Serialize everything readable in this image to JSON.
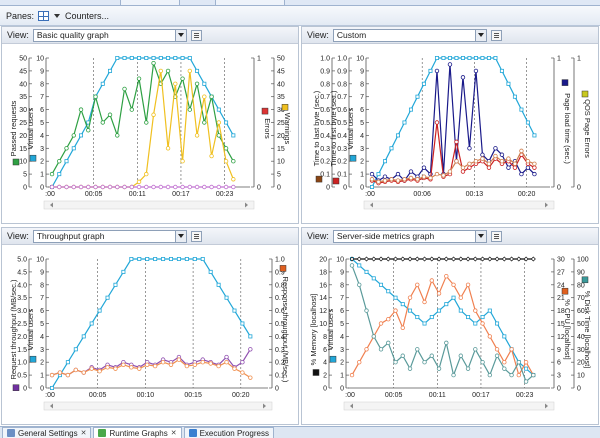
{
  "toolbar": {
    "panes_label": "Panes:",
    "counters_label": "Counters..."
  },
  "view_label": "View:",
  "tabs": [
    {
      "label": "General Settings",
      "close": "✕",
      "active": false,
      "color": "#6b8fc4"
    },
    {
      "label": "Runtime Graphs",
      "close": "✕",
      "active": true,
      "color": "#4aa84a"
    },
    {
      "label": "Execution Progress",
      "close": "",
      "active": false,
      "color": "#3a7fd0"
    }
  ],
  "panes": [
    {
      "view": "Basic quality graph",
      "x_ticks": [
        ":00",
        "00:05",
        "00:11",
        "00:17",
        "00:23"
      ],
      "left_axes": [
        {
          "label": "Passed requests",
          "color": "#2ea043",
          "ticks": [
            "0",
            "5",
            "10",
            "15",
            "20",
            "25",
            "30",
            "35",
            "40",
            "45",
            "50"
          ],
          "min": 0,
          "max": 50
        },
        {
          "label": "Virtual users",
          "color": "#22a7d8",
          "ticks": [
            "0",
            "1",
            "2",
            "3",
            "4",
            "5",
            "6",
            "7",
            "8",
            "9",
            "10"
          ],
          "min": 0,
          "max": 10
        }
      ],
      "right_axes": [
        {
          "label": "Errors",
          "color": "#d33",
          "ticks": [
            "0",
            "1"
          ],
          "min": 0,
          "max": 1
        },
        {
          "label": "Warnings",
          "color": "#f0c020",
          "ticks": [
            "0",
            "5",
            "10",
            "15",
            "20",
            "25",
            "30",
            "35",
            "40",
            "45",
            "50"
          ],
          "min": 0,
          "max": 50
        }
      ],
      "series": [
        {
          "axis": "Virtual users",
          "side": "left",
          "color": "#22a7d8",
          "marker": "square",
          "values": [
            0,
            1,
            2,
            3,
            4,
            5,
            7,
            8,
            9,
            10,
            10,
            10,
            10,
            10,
            10,
            10,
            10,
            10,
            10,
            10,
            9,
            8,
            7,
            6,
            5,
            4
          ]
        },
        {
          "axis": "Passed requests",
          "side": "left",
          "color": "#2ea043",
          "marker": "circle",
          "values": [
            5,
            10,
            15,
            20,
            30,
            22,
            35,
            25,
            28,
            20,
            38,
            30,
            42,
            25,
            48,
            40,
            45,
            35,
            42,
            30,
            40,
            25,
            35,
            20,
            15,
            10
          ]
        },
        {
          "axis": "Warnings",
          "side": "right",
          "color": "#f0c020",
          "marker": "circle",
          "values": [
            0,
            0,
            0,
            0,
            0,
            0,
            0,
            0,
            0,
            0,
            0,
            0,
            2,
            5,
            28,
            45,
            15,
            40,
            10,
            45,
            20,
            35,
            12,
            25,
            10,
            3
          ]
        },
        {
          "axis": "Errors",
          "side": "right",
          "color": "#c070d0",
          "marker": "circle",
          "values": [
            0,
            0,
            0,
            0,
            0,
            0,
            0,
            0,
            0,
            0,
            0,
            0,
            0,
            0,
            0,
            0,
            0,
            0,
            0,
            0,
            0,
            0,
            0,
            0,
            0,
            0
          ]
        }
      ]
    },
    {
      "view": "Custom",
      "x_ticks": [
        ":00",
        "00:06",
        "00:13",
        "00:20"
      ],
      "left_axes": [
        {
          "label": "Time to last byte (sec.)",
          "color": "#8b4513",
          "ticks": [
            "0",
            "0.1",
            "0.2",
            "0.3",
            "0.4",
            "0.5",
            "0.6",
            "0.7",
            "0.8",
            "0.9",
            "1.0"
          ],
          "min": 0,
          "max": 1
        },
        {
          "label": "Time to first byte (sec.)",
          "color": "#cc2222",
          "ticks": [
            "0",
            "0.1",
            "0.2",
            "0.3",
            "0.4",
            "0.5",
            "0.6",
            "0.7",
            "0.8",
            "0.9",
            "1.0"
          ],
          "min": 0,
          "max": 1
        },
        {
          "label": "Virtual users",
          "color": "#22a7d8",
          "ticks": [
            "0",
            "1",
            "2",
            "3",
            "4",
            "5",
            "6",
            "7",
            "8",
            "9",
            "10"
          ],
          "min": 0,
          "max": 10
        }
      ],
      "right_axes": [
        {
          "label": "Page load time (sec.)",
          "color": "#1a1a8a",
          "ticks": [
            "0",
            "1"
          ],
          "min": 0,
          "max": 1
        },
        {
          "label": "QOS Page Errors",
          "color": "#c8c820",
          "ticks": [
            "0",
            "1"
          ],
          "min": 0,
          "max": 1
        }
      ],
      "series": [
        {
          "axis": "Virtual users",
          "side": "left",
          "color": "#22a7d8",
          "marker": "square",
          "values": [
            0,
            1,
            2,
            3,
            4,
            5,
            6,
            7,
            8,
            9,
            10,
            10,
            10,
            10,
            10,
            10,
            10,
            10,
            10,
            10,
            9,
            8,
            7,
            6,
            5,
            4
          ]
        },
        {
          "axis": "Page load time (sec.)",
          "side": "right",
          "color": "#1a1a8a",
          "marker": "circle",
          "values": [
            0.1,
            0.05,
            0.08,
            0.06,
            0.1,
            0.05,
            0.12,
            0.08,
            0.15,
            0.1,
            0.9,
            0.1,
            0.95,
            0.2,
            0.85,
            0.3,
            0.9,
            0.25,
            0.2,
            0.3,
            0.25,
            0.15,
            0.2,
            0.1,
            0.15,
            0.1
          ]
        },
        {
          "axis": "Time to first byte (sec.)",
          "side": "left",
          "color": "#cc2222",
          "marker": "circle",
          "values": [
            0.05,
            0.03,
            0.04,
            0.05,
            0.04,
            0.05,
            0.06,
            0.05,
            0.07,
            0.06,
            0.5,
            0.08,
            0.1,
            0.35,
            0.12,
            0.15,
            0.18,
            0.2,
            0.15,
            0.22,
            0.18,
            0.2,
            0.15,
            0.25,
            0.18,
            0.15
          ]
        },
        {
          "axis": "Time to last byte (sec.)",
          "side": "left",
          "color": "#d08050",
          "marker": "circle",
          "values": [
            0.06,
            0.04,
            0.05,
            0.06,
            0.05,
            0.06,
            0.07,
            0.06,
            0.08,
            0.07,
            0.1,
            0.09,
            0.12,
            0.2,
            0.15,
            0.18,
            0.2,
            0.22,
            0.18,
            0.24,
            0.2,
            0.22,
            0.18,
            0.28,
            0.2,
            0.18
          ]
        }
      ]
    },
    {
      "view": "Throughput graph",
      "x_ticks": [
        ":00",
        "00:05",
        "00:10",
        "00:15",
        "00:20"
      ],
      "left_axes": [
        {
          "label": "Request throughput (MB/sec.)",
          "color": "#7030a0",
          "ticks": [
            "0",
            "0.5",
            "1.0",
            "1.5",
            "2.0",
            "2.5",
            "3.0",
            "3.5",
            "4.0",
            "4.5",
            "5.0"
          ],
          "min": 0,
          "max": 5
        },
        {
          "label": "Virtual users",
          "color": "#22a7d8",
          "ticks": [
            "0",
            "1",
            "2",
            "3",
            "4",
            "5",
            "6",
            "7",
            "8",
            "9",
            "10"
          ],
          "min": 0,
          "max": 10
        }
      ],
      "right_axes": [
        {
          "label": "Response throughput (MB/sec.)",
          "color": "#e06020",
          "ticks": [
            "0",
            "0.1",
            "0.2",
            "0.3",
            "0.4",
            "0.5",
            "0.6",
            "0.7",
            "0.8",
            "0.9",
            "1.0"
          ],
          "min": 0,
          "max": 1
        }
      ],
      "series": [
        {
          "axis": "Virtual users",
          "side": "left",
          "color": "#22a7d8",
          "marker": "square",
          "values": [
            0,
            1,
            2,
            3,
            4,
            5,
            6,
            7,
            8,
            9,
            10,
            10,
            10,
            10,
            10,
            10,
            10,
            10,
            10,
            10,
            9,
            8,
            7,
            6,
            5,
            4
          ]
        },
        {
          "axis": "Request throughput (MB/sec.)",
          "side": "left",
          "color": "#9050b0",
          "marker": "circle",
          "values": [
            0.5,
            0.6,
            0.5,
            0.7,
            0.6,
            0.8,
            0.7,
            0.9,
            0.8,
            1.0,
            0.9,
            0.8,
            1.0,
            0.9,
            1.1,
            1.0,
            1.2,
            0.9,
            1.0,
            1.1,
            1.0,
            0.9,
            1.2,
            0.8,
            1.0,
            1.5
          ]
        },
        {
          "axis": "Response throughput (MB/sec.)",
          "side": "right",
          "color": "#f09050",
          "marker": "circle",
          "values": [
            0.1,
            0.12,
            0.1,
            0.14,
            0.12,
            0.15,
            0.13,
            0.16,
            0.15,
            0.18,
            0.16,
            0.15,
            0.18,
            0.17,
            0.2,
            0.18,
            0.22,
            0.17,
            0.18,
            0.2,
            0.19,
            0.17,
            0.2,
            0.15,
            0.12,
            0.08
          ]
        }
      ]
    },
    {
      "view": "Server-side metrics graph",
      "x_ticks": [
        ":00",
        "00:05",
        "00:11",
        "00:17",
        "00:23"
      ],
      "left_axes": [
        {
          "label": "% Memory [localhost]",
          "color": "#111111",
          "ticks": [
            "0",
            "2",
            "4",
            "6",
            "8",
            "10",
            "12",
            "14",
            "16",
            "18",
            "20"
          ],
          "min": 0,
          "max": 20
        },
        {
          "label": "Virtual users",
          "color": "#22a7d8",
          "ticks": [
            "0",
            "1",
            "2",
            "3",
            "4",
            "5",
            "6",
            "7",
            "8",
            "9",
            "10"
          ],
          "min": 0,
          "max": 10
        }
      ],
      "right_axes": [
        {
          "label": "% CPU [localhost]",
          "color": "#e06020",
          "ticks": [
            "0",
            "3",
            "6",
            "9",
            "12",
            "15",
            "18",
            "21",
            "24",
            "27",
            "30"
          ],
          "min": 0,
          "max": 30
        },
        {
          "label": "% Disk Time [localhost]",
          "color": "#3a9a9a",
          "ticks": [
            "0",
            "10",
            "20",
            "30",
            "40",
            "50",
            "60",
            "70",
            "80",
            "90",
            "100"
          ],
          "min": 0,
          "max": 100
        }
      ],
      "series": [
        {
          "axis": "Virtual users",
          "side": "left",
          "color": "#22a7d8",
          "marker": "square",
          "values": [
            10,
            9.5,
            9,
            8.5,
            8,
            7.5,
            7,
            6.5,
            6,
            5.5,
            5,
            5.5,
            6,
            6.5,
            7,
            6,
            5.5,
            5,
            5.5,
            6,
            5,
            4,
            3,
            2,
            1.5,
            1
          ]
        },
        {
          "axis": "% CPU [localhost]",
          "side": "right",
          "color": "#f08050",
          "marker": "circle",
          "values": [
            3,
            6,
            9,
            12,
            15,
            16,
            18,
            14,
            21,
            24,
            20,
            25,
            22,
            26,
            24,
            21,
            24,
            18,
            15,
            12,
            9,
            6,
            9,
            3,
            6,
            3
          ]
        },
        {
          "axis": "% Disk Time [localhost]",
          "side": "right",
          "color": "#5a9a9a",
          "marker": "circle",
          "values": [
            95,
            80,
            60,
            40,
            30,
            35,
            20,
            25,
            15,
            30,
            20,
            25,
            15,
            35,
            10,
            25,
            15,
            30,
            20,
            10,
            25,
            15,
            10,
            20,
            5,
            10
          ]
        },
        {
          "axis": "% Memory [localhost]",
          "side": "left",
          "color": "#111111",
          "marker": "diamond",
          "values": [
            20,
            20,
            20,
            20,
            20,
            20,
            20,
            20,
            20,
            20,
            20,
            20,
            20,
            20,
            20,
            20,
            20,
            20,
            20,
            20,
            20,
            20,
            20,
            20,
            20,
            20
          ]
        }
      ]
    }
  ]
}
